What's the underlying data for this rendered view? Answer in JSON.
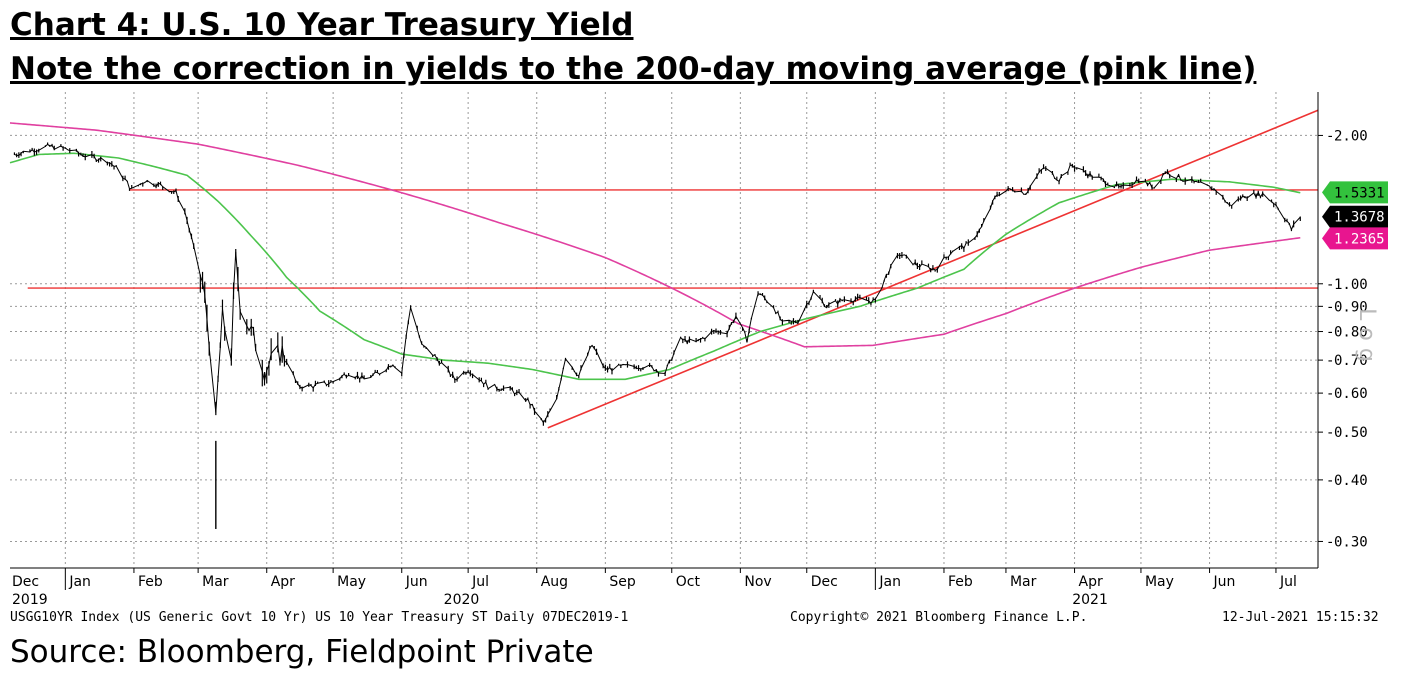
{
  "titles": {
    "line1": "Chart 4: U.S. 10 Year Treasury Yield",
    "line2": "Note the correction in yields to the 200-day moving average (pink line)"
  },
  "footer": {
    "index": "USGG10YR Index (US Generic Govt 10 Yr) US 10 Year Treasury ST  Daily 07DEC2019-1",
    "copyright": "Copyright© 2021 Bloomberg Finance L.P.",
    "timestamp": "12-Jul-2021 15:15:32"
  },
  "source": "Source: Bloomberg, Fieldpoint Private",
  "chart_data": {
    "type": "line",
    "scale": "log",
    "ylim": [
      0.27,
      2.45
    ],
    "xlim": [
      "2019-12-07",
      "2021-07-20"
    ],
    "y_ticks": [
      0.3,
      0.4,
      0.5,
      0.6,
      0.7,
      0.8,
      0.9,
      1.0,
      2.0
    ],
    "y_tick_labels": [
      "0.30",
      "0.40",
      "0.50",
      "0.60",
      "0.70",
      "0.80",
      "0.90",
      "1.00",
      "2.00"
    ],
    "x_ticks": [
      {
        "label": "Dec",
        "date": "2019-12-07"
      },
      {
        "label": "Jan",
        "date": "2020-01-01"
      },
      {
        "label": "Feb",
        "date": "2020-02-01"
      },
      {
        "label": "Mar",
        "date": "2020-03-01"
      },
      {
        "label": "Apr",
        "date": "2020-04-01"
      },
      {
        "label": "May",
        "date": "2020-05-01"
      },
      {
        "label": "Jun",
        "date": "2020-06-01"
      },
      {
        "label": "Jul",
        "date": "2020-07-01"
      },
      {
        "label": "Aug",
        "date": "2020-08-01"
      },
      {
        "label": "Sep",
        "date": "2020-09-01"
      },
      {
        "label": "Oct",
        "date": "2020-10-01"
      },
      {
        "label": "Nov",
        "date": "2020-11-01"
      },
      {
        "label": "Dec",
        "date": "2020-12-01"
      },
      {
        "label": "Jan",
        "date": "2021-01-01"
      },
      {
        "label": "Feb",
        "date": "2021-02-01"
      },
      {
        "label": "Mar",
        "date": "2021-03-01"
      },
      {
        "label": "Apr",
        "date": "2021-04-01"
      },
      {
        "label": "May",
        "date": "2021-05-01"
      },
      {
        "label": "Jun",
        "date": "2021-06-01"
      },
      {
        "label": "Jul",
        "date": "2021-07-01"
      }
    ],
    "years": [
      {
        "label": "2019",
        "date": "2019-12-07"
      },
      {
        "label": "2020",
        "date": "2020-06-28"
      },
      {
        "label": "2021",
        "date": "2021-04-08"
      }
    ],
    "year_dividers": [
      "2020-01-01",
      "2021-01-01"
    ],
    "series": [
      {
        "color": "#000000",
        "points": [
          [
            "2019-12-07",
            1.82
          ],
          [
            "2019-12-15",
            1.86
          ],
          [
            "2019-12-25",
            1.9
          ],
          [
            "2020-01-01",
            1.88
          ],
          [
            "2020-01-10",
            1.82
          ],
          [
            "2020-01-20",
            1.78
          ],
          [
            "2020-01-25",
            1.7
          ],
          [
            "2020-01-31",
            1.55
          ],
          [
            "2020-02-06",
            1.62
          ],
          [
            "2020-02-14",
            1.58
          ],
          [
            "2020-02-20",
            1.53
          ],
          [
            "2020-02-24",
            1.4
          ],
          [
            "2020-02-28",
            1.18
          ],
          [
            "2020-03-03",
            1.0
          ],
          [
            "2020-03-06",
            0.78
          ],
          [
            "2020-03-09",
            0.52
          ],
          [
            "2020-03-12",
            0.85
          ],
          [
            "2020-03-16",
            0.72
          ],
          [
            "2020-03-18",
            1.12
          ],
          [
            "2020-03-20",
            0.92
          ],
          [
            "2020-03-24",
            0.82
          ],
          [
            "2020-03-31",
            0.67
          ],
          [
            "2020-04-08",
            0.73
          ],
          [
            "2020-04-15",
            0.62
          ],
          [
            "2020-04-22",
            0.62
          ],
          [
            "2020-04-30",
            0.63
          ],
          [
            "2020-05-08",
            0.66
          ],
          [
            "2020-05-15",
            0.64
          ],
          [
            "2020-05-22",
            0.66
          ],
          [
            "2020-05-28",
            0.69
          ],
          [
            "2020-06-01",
            0.66
          ],
          [
            "2020-06-05",
            0.9
          ],
          [
            "2020-06-10",
            0.75
          ],
          [
            "2020-06-15",
            0.72
          ],
          [
            "2020-06-25",
            0.64
          ],
          [
            "2020-07-01",
            0.67
          ],
          [
            "2020-07-10",
            0.62
          ],
          [
            "2020-07-20",
            0.61
          ],
          [
            "2020-07-28",
            0.58
          ],
          [
            "2020-08-04",
            0.52
          ],
          [
            "2020-08-10",
            0.58
          ],
          [
            "2020-08-14",
            0.71
          ],
          [
            "2020-08-20",
            0.65
          ],
          [
            "2020-08-26",
            0.75
          ],
          [
            "2020-09-01",
            0.67
          ],
          [
            "2020-09-10",
            0.68
          ],
          [
            "2020-09-20",
            0.68
          ],
          [
            "2020-09-28",
            0.66
          ],
          [
            "2020-10-05",
            0.77
          ],
          [
            "2020-10-12",
            0.76
          ],
          [
            "2020-10-20",
            0.8
          ],
          [
            "2020-10-26",
            0.8
          ],
          [
            "2020-10-30",
            0.86
          ],
          [
            "2020-11-04",
            0.77
          ],
          [
            "2020-11-09",
            0.96
          ],
          [
            "2020-11-16",
            0.9
          ],
          [
            "2020-11-20",
            0.83
          ],
          [
            "2020-11-27",
            0.84
          ],
          [
            "2020-12-04",
            0.96
          ],
          [
            "2020-12-10",
            0.9
          ],
          [
            "2020-12-18",
            0.93
          ],
          [
            "2020-12-25",
            0.93
          ],
          [
            "2021-01-01",
            0.92
          ],
          [
            "2021-01-06",
            1.04
          ],
          [
            "2021-01-12",
            1.15
          ],
          [
            "2021-01-20",
            1.09
          ],
          [
            "2021-01-28",
            1.07
          ],
          [
            "2021-02-05",
            1.17
          ],
          [
            "2021-02-12",
            1.2
          ],
          [
            "2021-02-18",
            1.3
          ],
          [
            "2021-02-25",
            1.52
          ],
          [
            "2021-03-04",
            1.56
          ],
          [
            "2021-03-10",
            1.53
          ],
          [
            "2021-03-18",
            1.72
          ],
          [
            "2021-03-25",
            1.63
          ],
          [
            "2021-03-31",
            1.74
          ],
          [
            "2021-04-07",
            1.67
          ],
          [
            "2021-04-14",
            1.62
          ],
          [
            "2021-04-22",
            1.56
          ],
          [
            "2021-04-30",
            1.63
          ],
          [
            "2021-05-07",
            1.57
          ],
          [
            "2021-05-12",
            1.69
          ],
          [
            "2021-05-20",
            1.63
          ],
          [
            "2021-05-28",
            1.59
          ],
          [
            "2021-06-04",
            1.55
          ],
          [
            "2021-06-10",
            1.44
          ],
          [
            "2021-06-17",
            1.51
          ],
          [
            "2021-06-25",
            1.52
          ],
          [
            "2021-07-01",
            1.45
          ],
          [
            "2021-07-06",
            1.34
          ],
          [
            "2021-07-08",
            1.29
          ],
          [
            "2021-07-12",
            1.37
          ]
        ]
      },
      {
        "color": "#4cc44c",
        "points": [
          [
            "2019-12-07",
            1.76
          ],
          [
            "2019-12-20",
            1.83
          ],
          [
            "2020-01-05",
            1.84
          ],
          [
            "2020-01-25",
            1.8
          ],
          [
            "2020-02-10",
            1.73
          ],
          [
            "2020-02-25",
            1.66
          ],
          [
            "2020-03-10",
            1.47
          ],
          [
            "2020-03-25",
            1.25
          ],
          [
            "2020-04-10",
            1.03
          ],
          [
            "2020-04-25",
            0.88
          ],
          [
            "2020-05-15",
            0.77
          ],
          [
            "2020-06-01",
            0.72
          ],
          [
            "2020-06-20",
            0.7
          ],
          [
            "2020-07-10",
            0.69
          ],
          [
            "2020-07-30",
            0.67
          ],
          [
            "2020-08-20",
            0.64
          ],
          [
            "2020-09-10",
            0.64
          ],
          [
            "2020-09-30",
            0.67
          ],
          [
            "2020-10-20",
            0.73
          ],
          [
            "2020-11-10",
            0.8
          ],
          [
            "2020-12-01",
            0.85
          ],
          [
            "2020-12-25",
            0.9
          ],
          [
            "2021-01-20",
            0.98
          ],
          [
            "2021-02-10",
            1.07
          ],
          [
            "2021-03-01",
            1.26
          ],
          [
            "2021-03-25",
            1.46
          ],
          [
            "2021-04-20",
            1.59
          ],
          [
            "2021-05-15",
            1.63
          ],
          [
            "2021-06-10",
            1.61
          ],
          [
            "2021-06-30",
            1.57
          ],
          [
            "2021-07-12",
            1.53
          ]
        ]
      },
      {
        "color": "#e040a0",
        "points": [
          [
            "2019-12-07",
            2.12
          ],
          [
            "2020-01-15",
            2.05
          ],
          [
            "2020-03-01",
            1.92
          ],
          [
            "2020-04-15",
            1.74
          ],
          [
            "2020-06-01",
            1.53
          ],
          [
            "2020-07-15",
            1.33
          ],
          [
            "2020-09-01",
            1.13
          ],
          [
            "2020-10-01",
            0.98
          ],
          [
            "2020-10-31",
            0.83
          ],
          [
            "2020-11-30",
            0.745
          ],
          [
            "2020-12-31",
            0.75
          ],
          [
            "2021-02-01",
            0.79
          ],
          [
            "2021-03-01",
            0.87
          ],
          [
            "2021-04-01",
            0.98
          ],
          [
            "2021-05-01",
            1.08
          ],
          [
            "2021-06-01",
            1.17
          ],
          [
            "2021-07-12",
            1.24
          ]
        ]
      }
    ],
    "price_tags": [
      {
        "value": 1.5331,
        "label": "1.5331",
        "color": "#33c23d",
        "text_color": "#000000"
      },
      {
        "value": 1.3678,
        "label": "1.3678",
        "color": "#000000",
        "text_color": "#ffffff"
      },
      {
        "value": 1.2365,
        "label": "1.2365",
        "color": "#e8158f",
        "text_color": "#ffffff"
      }
    ],
    "annotations": {
      "color": "#ee3333",
      "horizontal_levels": [
        {
          "y": 1.55,
          "from": "2020-01-30",
          "to": "2021-07-20"
        },
        {
          "y": 0.98,
          "from": "2019-12-15",
          "to": "2021-07-20"
        }
      ],
      "trendline": {
        "from": [
          "2020-08-06",
          0.51
        ],
        "to": [
          "2021-07-20",
          2.25
        ]
      }
    },
    "side_label": "L o g"
  }
}
